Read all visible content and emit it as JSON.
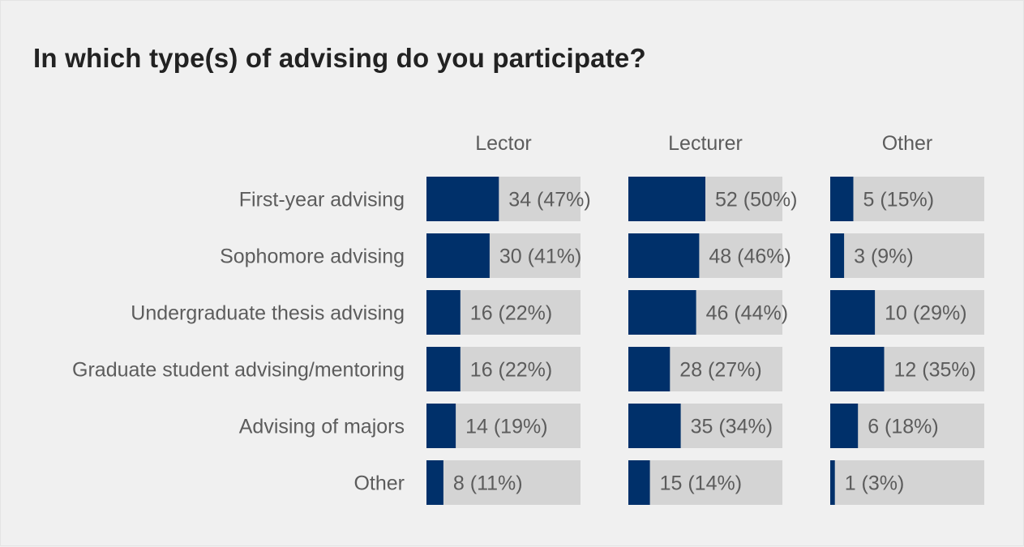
{
  "chart_data": {
    "type": "bar",
    "title": "In which type(s) of advising do you participate?",
    "categories": [
      "First-year advising",
      "Sophomore advising",
      "Undergraduate thesis advising",
      "Graduate student advising/mentoring",
      "Advising of majors",
      "Other"
    ],
    "series": [
      {
        "name": "Lector",
        "values": [
          34,
          30,
          16,
          16,
          14,
          8
        ],
        "percents": [
          47,
          41,
          22,
          22,
          19,
          11
        ],
        "labels": [
          "34 (47%)",
          "30 (41%)",
          "16 (22%)",
          "16 (22%)",
          "14 (19%)",
          "8 (11%)"
        ]
      },
      {
        "name": "Lecturer",
        "values": [
          52,
          48,
          46,
          28,
          35,
          15
        ],
        "percents": [
          50,
          46,
          44,
          27,
          34,
          14
        ],
        "labels": [
          "52 (50%)",
          "48 (46%)",
          "46 (44%)",
          "28 (27%)",
          "35 (34%)",
          "15 (14%)"
        ]
      },
      {
        "name": "Other",
        "values": [
          5,
          3,
          10,
          12,
          6,
          1
        ],
        "percents": [
          15,
          9,
          29,
          35,
          18,
          3
        ],
        "labels": [
          "5 (15%)",
          "3 (9%)",
          "10 (29%)",
          "12 (35%)",
          "6 (18%)",
          "1 (3%)"
        ]
      }
    ],
    "xlim": [
      0,
      100
    ],
    "colors": {
      "bar": "#00306a",
      "track": "#d4d4d4",
      "background": "#f0f0f0"
    },
    "grid": false
  }
}
